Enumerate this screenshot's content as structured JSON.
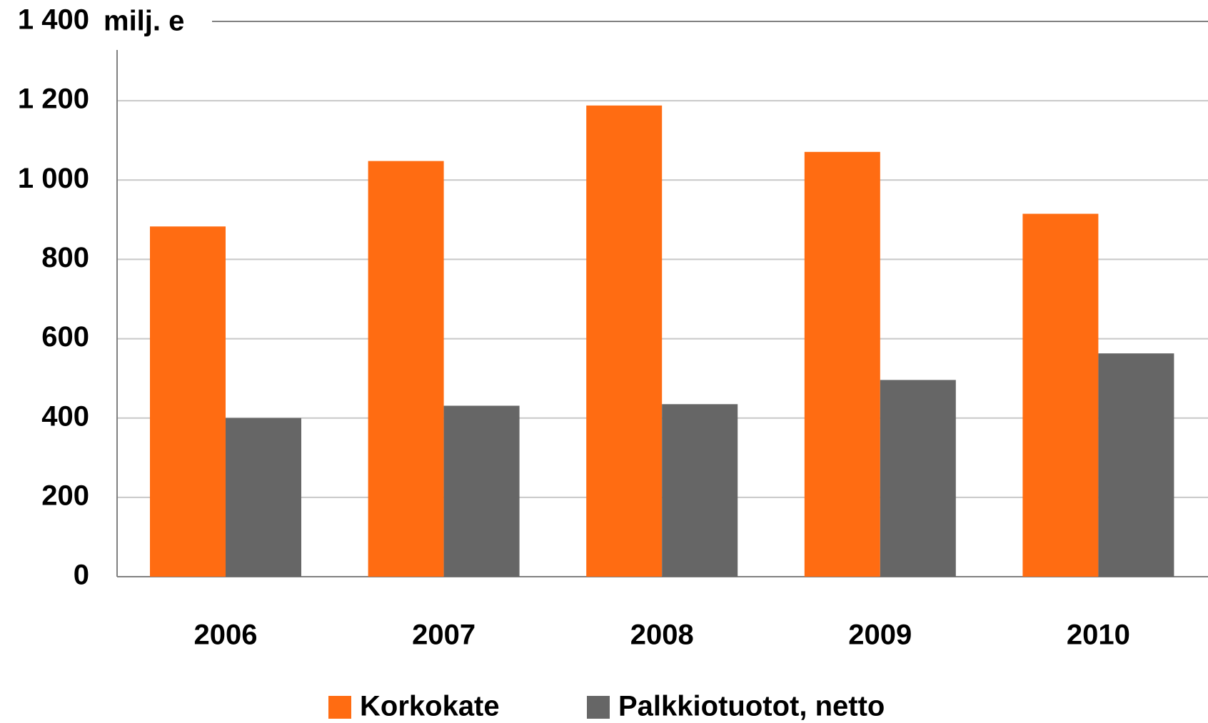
{
  "chart_data": {
    "type": "bar",
    "y_axis_label": "milj. e",
    "categories": [
      "2006",
      "2007",
      "2008",
      "2009",
      "2010"
    ],
    "series": [
      {
        "name": "Korkokate",
        "color": "#ff6c12",
        "values": [
          883,
          1048,
          1188,
          1071,
          915
        ]
      },
      {
        "name": "Palkkiotuotot, netto",
        "color": "#666666",
        "values": [
          400,
          431,
          435,
          496,
          563
        ]
      }
    ],
    "ylim": [
      0,
      1400
    ],
    "yticks": [
      0,
      200,
      400,
      600,
      800,
      {
        "value": 1000,
        "label": "1 000"
      },
      {
        "value": 1200,
        "label": "1 200"
      },
      {
        "value": 1400,
        "label": "1 400"
      }
    ],
    "grid": true,
    "legend": "bottom"
  }
}
